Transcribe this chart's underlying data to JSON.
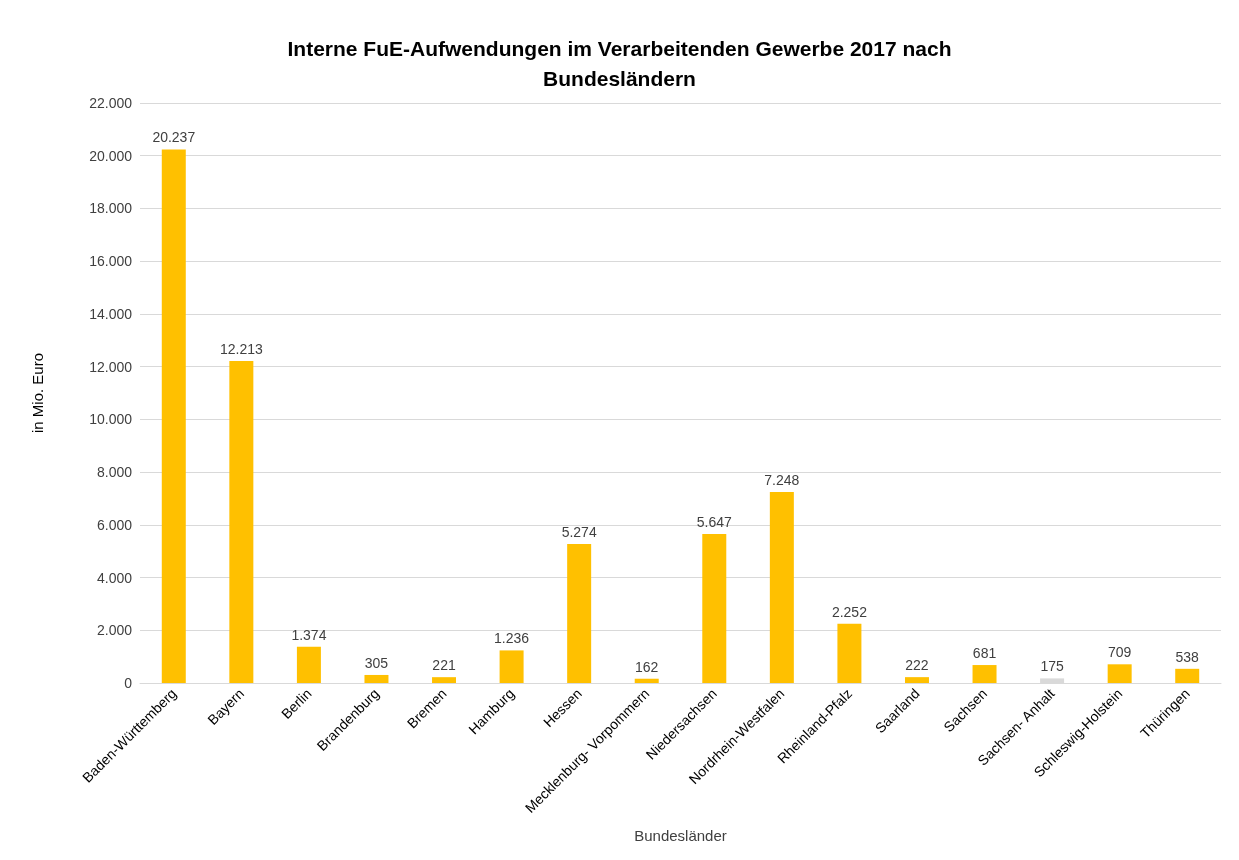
{
  "chart_data": {
    "type": "bar",
    "title": "Interne FuE-Aufwendungen im Verarbeitenden Gewerbe 2017 nach\nBundesländern",
    "xlabel": "Bundesländer",
    "ylabel": "in Mio. Euro",
    "categories": [
      "Baden-Württemberg",
      "Bayern",
      "Berlin",
      "Brandenburg",
      "Bremen",
      "Hamburg",
      "Hessen",
      "Mecklenburg- Vorpommern",
      "Niedersachsen",
      "Nordrhein-Westfalen",
      "Rheinland-Pfalz",
      "Saarland",
      "Sachsen",
      "Sachsen- Anhalt",
      "Schleswig-Holstein",
      "Thüringen"
    ],
    "values": [
      20237,
      12213,
      1374,
      305,
      221,
      1236,
      5274,
      162,
      5647,
      7248,
      2252,
      222,
      681,
      175,
      709,
      538
    ],
    "value_labels": [
      "20.237",
      "12.213",
      "1.374",
      "305",
      "221",
      "1.236",
      "5.274",
      "162",
      "5.647",
      "7.248",
      "2.252",
      "222",
      "681",
      "175",
      "709",
      "538"
    ],
    "colors": [
      "#ffc000",
      "#ffc000",
      "#ffc000",
      "#ffc000",
      "#ffc000",
      "#ffc000",
      "#ffc000",
      "#ffc000",
      "#ffc000",
      "#ffc000",
      "#ffc000",
      "#ffc000",
      "#ffc000",
      "#d9d9d9",
      "#ffc000",
      "#ffc000"
    ],
    "ylim": [
      0,
      22000
    ],
    "yticks": [
      0,
      {
        "value": 2000,
        "label": "2.000"
      },
      {
        "value": 4000,
        "label": "4.000"
      },
      {
        "value": 6000,
        "label": "6.000"
      },
      {
        "value": 8000,
        "label": "8.000"
      },
      {
        "value": 10000,
        "label": "10.000"
      },
      {
        "value": 12000,
        "label": "12.000"
      },
      {
        "value": 14000,
        "label": "14.000"
      },
      {
        "value": 16000,
        "label": "16.000"
      },
      {
        "value": 18000,
        "label": "18.000"
      },
      {
        "value": 20000,
        "label": "20.000"
      },
      {
        "value": 22000,
        "label": "22.000"
      }
    ],
    "grid": "y"
  }
}
